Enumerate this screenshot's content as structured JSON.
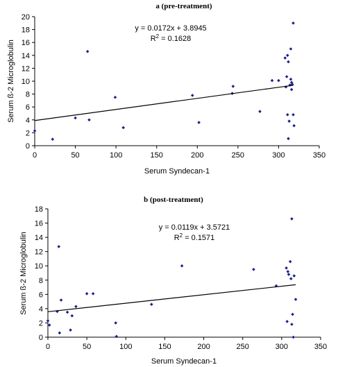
{
  "chart_data": [
    {
      "type": "scatter",
      "title": "a (pre-treatment)",
      "xlabel": "Serum Syndecan-1",
      "ylabel": "Serum ß-2 Microglobulin",
      "xlim": [
        0,
        350
      ],
      "ylim": [
        0,
        20
      ],
      "xticks": [
        "0",
        "50",
        "100",
        "150",
        "200",
        "250",
        "300",
        "350"
      ],
      "yticks": [
        "0",
        "2",
        "4",
        "6",
        "8",
        "10",
        "12",
        "14",
        "16",
        "18",
        "20"
      ],
      "equation": "y = 0.0172x + 3.8945",
      "r2_prefix": "R",
      "r2_sup": "2",
      "r2_value": " = 0.1628",
      "trendline": {
        "slope": 0.0172,
        "intercept": 3.8945,
        "x_range": [
          0,
          318
        ]
      },
      "grid": false,
      "marker_color": "#1f1f8f",
      "points": [
        [
          0,
          2.3
        ],
        [
          22,
          1.0
        ],
        [
          50,
          4.3
        ],
        [
          65,
          14.6
        ],
        [
          67,
          4.0
        ],
        [
          99,
          7.5
        ],
        [
          109,
          2.8
        ],
        [
          194,
          7.8
        ],
        [
          202,
          3.6
        ],
        [
          243,
          8.1
        ],
        [
          244,
          9.2
        ],
        [
          277,
          5.3
        ],
        [
          292,
          10.1
        ],
        [
          300,
          10.1
        ],
        [
          308,
          13.6
        ],
        [
          309,
          9.1
        ],
        [
          310,
          10.7
        ],
        [
          311,
          14.0
        ],
        [
          311,
          4.8
        ],
        [
          312,
          13.0
        ],
        [
          312,
          1.1
        ],
        [
          313,
          3.8
        ],
        [
          314,
          9.4
        ],
        [
          315,
          10.3
        ],
        [
          315,
          15.0
        ],
        [
          316,
          9.8
        ],
        [
          316,
          8.7
        ],
        [
          317,
          9.5
        ],
        [
          318,
          19.0
        ],
        [
          318,
          4.8
        ],
        [
          319,
          3.1
        ]
      ]
    },
    {
      "type": "scatter",
      "title": "b (post-treatment)",
      "xlabel": "Serum Syndecan-1",
      "ylabel": "Serum ß-2 Microglobulin",
      "xlim": [
        0,
        350
      ],
      "ylim": [
        0,
        18
      ],
      "xticks": [
        "0",
        "50",
        "100",
        "150",
        "200",
        "250",
        "300",
        "350"
      ],
      "yticks": [
        "0",
        "2",
        "4",
        "6",
        "8",
        "10",
        "12",
        "14",
        "16",
        "18"
      ],
      "equation": "y = 0.0119x + 3.5721",
      "r2_prefix": "R",
      "r2_sup": "2",
      "r2_value": " = 0.1571",
      "trendline": {
        "slope": 0.0119,
        "intercept": 3.5721,
        "x_range": [
          0,
          318
        ]
      },
      "grid": false,
      "marker_color": "#1f1f8f",
      "points": [
        [
          0,
          2.3
        ],
        [
          2,
          1.7
        ],
        [
          12,
          3.6
        ],
        [
          14,
          12.7
        ],
        [
          15,
          0.6
        ],
        [
          17,
          5.2
        ],
        [
          25,
          3.5
        ],
        [
          29,
          1.0
        ],
        [
          31,
          3.0
        ],
        [
          36,
          4.3
        ],
        [
          50,
          6.1
        ],
        [
          58,
          6.1
        ],
        [
          87,
          2.0
        ],
        [
          88,
          0.1
        ],
        [
          133,
          4.6
        ],
        [
          172,
          10.0
        ],
        [
          264,
          9.5
        ],
        [
          293,
          7.2
        ],
        [
          306,
          9.7
        ],
        [
          307,
          2.2
        ],
        [
          308,
          9.2
        ],
        [
          309,
          8.8
        ],
        [
          311,
          10.6
        ],
        [
          312,
          8.2
        ],
        [
          313,
          16.6
        ],
        [
          313,
          1.8
        ],
        [
          314,
          3.2
        ],
        [
          315,
          0.0
        ],
        [
          316,
          8.6
        ],
        [
          318,
          5.3
        ]
      ]
    }
  ]
}
